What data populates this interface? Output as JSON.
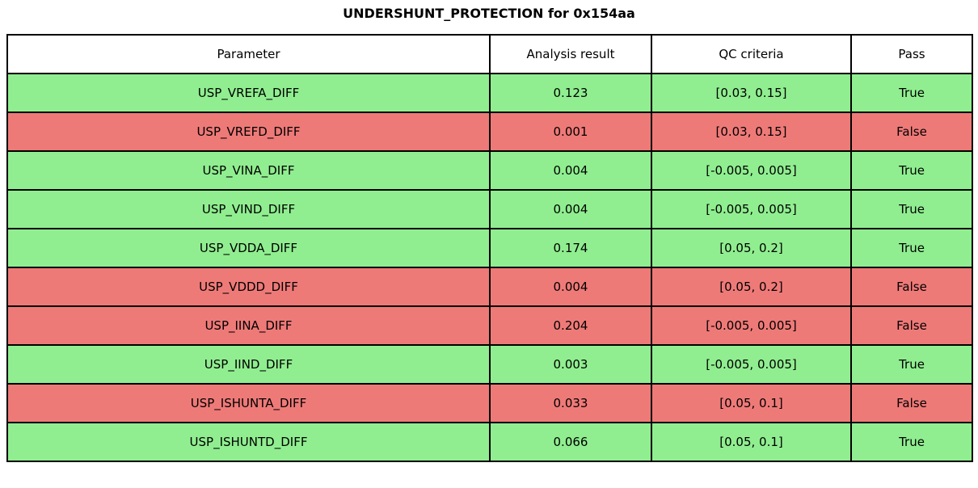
{
  "title": "UNDERSHUNT_PROTECTION for 0x154aa",
  "colors": {
    "pass_row_bg": "#90ee90",
    "fail_row_bg": "#ee7a78",
    "header_bg": "#ffffff",
    "border": "#000000",
    "text": "#000000"
  },
  "table": {
    "columns": [
      "Parameter",
      "Analysis result",
      "QC criteria",
      "Pass"
    ],
    "rows": [
      {
        "parameter": "USP_VREFA_DIFF",
        "result": "0.123",
        "criteria": "[0.03, 0.15]",
        "pass": "True"
      },
      {
        "parameter": "USP_VREFD_DIFF",
        "result": "0.001",
        "criteria": "[0.03, 0.15]",
        "pass": "False"
      },
      {
        "parameter": "USP_VINA_DIFF",
        "result": "0.004",
        "criteria": "[-0.005, 0.005]",
        "pass": "True"
      },
      {
        "parameter": "USP_VIND_DIFF",
        "result": "0.004",
        "criteria": "[-0.005, 0.005]",
        "pass": "True"
      },
      {
        "parameter": "USP_VDDA_DIFF",
        "result": "0.174",
        "criteria": "[0.05, 0.2]",
        "pass": "True"
      },
      {
        "parameter": "USP_VDDD_DIFF",
        "result": "0.004",
        "criteria": "[0.05, 0.2]",
        "pass": "False"
      },
      {
        "parameter": "USP_IINA_DIFF",
        "result": "0.204",
        "criteria": "[-0.005, 0.005]",
        "pass": "False"
      },
      {
        "parameter": "USP_IIND_DIFF",
        "result": "0.003",
        "criteria": "[-0.005, 0.005]",
        "pass": "True"
      },
      {
        "parameter": "USP_ISHUNTA_DIFF",
        "result": "0.033",
        "criteria": "[0.05, 0.1]",
        "pass": "False"
      },
      {
        "parameter": "USP_ISHUNTD_DIFF",
        "result": "0.066",
        "criteria": "[0.05, 0.1]",
        "pass": "True"
      }
    ]
  },
  "chart_data": {
    "type": "table",
    "title": "UNDERSHUNT_PROTECTION for 0x154aa",
    "columns": [
      "Parameter",
      "Analysis result",
      "QC criteria",
      "Pass"
    ],
    "rows": [
      [
        "USP_VREFA_DIFF",
        0.123,
        "[0.03, 0.15]",
        true
      ],
      [
        "USP_VREFD_DIFF",
        0.001,
        "[0.03, 0.15]",
        false
      ],
      [
        "USP_VINA_DIFF",
        0.004,
        "[-0.005, 0.005]",
        true
      ],
      [
        "USP_VIND_DIFF",
        0.004,
        "[-0.005, 0.005]",
        true
      ],
      [
        "USP_VDDA_DIFF",
        0.174,
        "[0.05, 0.2]",
        true
      ],
      [
        "USP_VDDD_DIFF",
        0.004,
        "[0.05, 0.2]",
        false
      ],
      [
        "USP_IINA_DIFF",
        0.204,
        "[-0.005, 0.005]",
        false
      ],
      [
        "USP_IIND_DIFF",
        0.003,
        "[-0.005, 0.005]",
        true
      ],
      [
        "USP_ISHUNTA_DIFF",
        0.033,
        "[0.05, 0.1]",
        false
      ],
      [
        "USP_ISHUNTD_DIFF",
        0.066,
        "[0.05, 0.1]",
        true
      ]
    ],
    "layout_hints": {
      "row_color_pass": "#90ee90",
      "row_color_fail": "#ee7a78",
      "header_background": "#ffffff",
      "grid": "on"
    }
  }
}
